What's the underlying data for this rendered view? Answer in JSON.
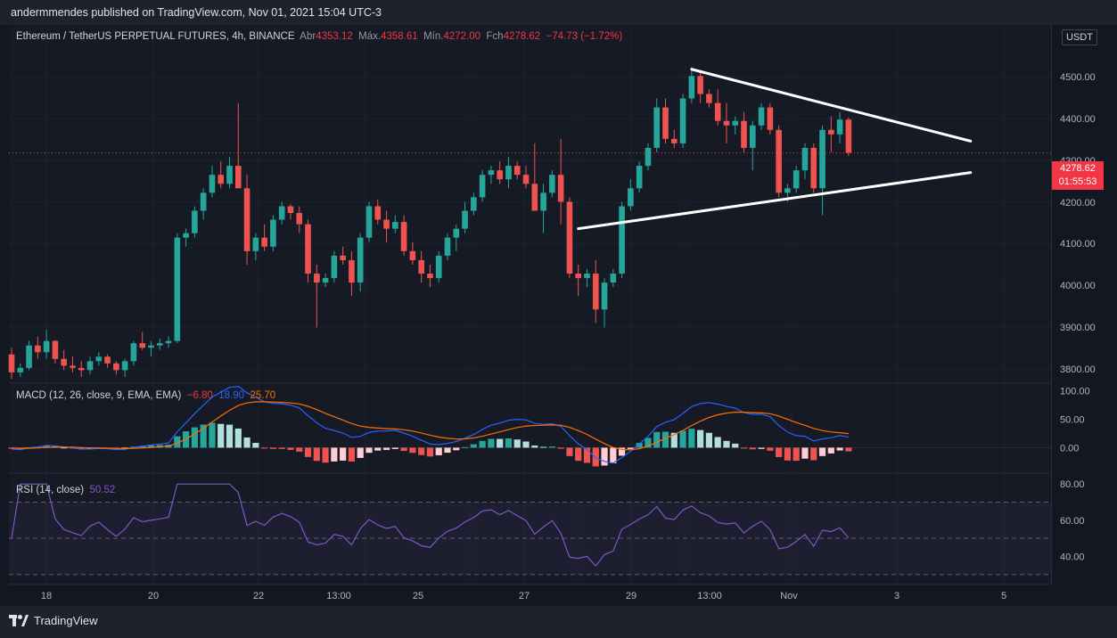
{
  "publish_line": "andermmendes published on TradingView.com, Nov 01, 2021 15:04 UTC-3",
  "legend": {
    "symbol": "Ethereum / TetherUS PERPETUAL FUTURES, 4h, BINANCE",
    "open_label": "Abr",
    "open": "4353.12",
    "high_label": "Máx.",
    "high": "4358.61",
    "low_label": "Mín.",
    "low": "4272.00",
    "close_label": "Fch",
    "close": "4278.62",
    "change": "−74.73 (−1.72%)"
  },
  "currency_button": "USDT",
  "current_price": {
    "price": "4278.62",
    "countdown": "01:55:53"
  },
  "macd_legend": {
    "title": "MACD (12, 26, close, 9, EMA, EMA)",
    "hist": "−6.80",
    "macd": "18.90",
    "signal": "25.70"
  },
  "rsi_legend": {
    "title": "RSI (14, close)",
    "value": "50.52"
  },
  "price_axis": [
    "4500.00",
    "4400.00",
    "4300.00",
    "4200.00",
    "4100.00",
    "4000.00",
    "3900.00",
    "3800.00"
  ],
  "macd_axis": [
    "100.00",
    "50.00",
    "0.00"
  ],
  "rsi_axis": [
    "80.00",
    "60.00",
    "40.00"
  ],
  "time_axis": [
    "18",
    "20",
    "22",
    "13:00",
    "25",
    "27",
    "29",
    "13:00",
    "Nov",
    "3",
    "5"
  ],
  "brand": "TradingView",
  "colors": {
    "up": "#26a69a",
    "down": "#ef5350",
    "macd": "#2962ff",
    "signal": "#ff6d00",
    "rsi": "#7e57c2",
    "trendline": "#ffffff"
  },
  "chart_data": {
    "type": "candlestick",
    "symbol": "ETHUSDT Perp",
    "interval": "4h",
    "candles_ohlc": [
      [
        3830,
        3845,
        3775,
        3790
      ],
      [
        3790,
        3810,
        3780,
        3800
      ],
      [
        3800,
        3860,
        3795,
        3850
      ],
      [
        3850,
        3870,
        3820,
        3835
      ],
      [
        3835,
        3885,
        3820,
        3860
      ],
      [
        3860,
        3862,
        3810,
        3820
      ],
      [
        3820,
        3840,
        3795,
        3805
      ],
      [
        3805,
        3825,
        3790,
        3800
      ],
      [
        3800,
        3815,
        3780,
        3795
      ],
      [
        3795,
        3825,
        3785,
        3815
      ],
      [
        3815,
        3835,
        3805,
        3825
      ],
      [
        3825,
        3830,
        3800,
        3810
      ],
      [
        3810,
        3815,
        3785,
        3795
      ],
      [
        3795,
        3820,
        3780,
        3815
      ],
      [
        3815,
        3860,
        3805,
        3855
      ],
      [
        3855,
        3880,
        3840,
        3845
      ],
      [
        3845,
        3860,
        3825,
        3850
      ],
      [
        3850,
        3865,
        3840,
        3855
      ],
      [
        3855,
        3870,
        3845,
        3860
      ],
      [
        3860,
        4100,
        3855,
        4090
      ],
      [
        4090,
        4110,
        4070,
        4100
      ],
      [
        4100,
        4160,
        4090,
        4150
      ],
      [
        4150,
        4200,
        4130,
        4190
      ],
      [
        4190,
        4250,
        4180,
        4230
      ],
      [
        4230,
        4260,
        4200,
        4210
      ],
      [
        4210,
        4270,
        4200,
        4250
      ],
      [
        4250,
        4390,
        4240,
        4200
      ],
      [
        4200,
        4230,
        4030,
        4060
      ],
      [
        4060,
        4100,
        4040,
        4090
      ],
      [
        4090,
        4120,
        4060,
        4070
      ],
      [
        4070,
        4140,
        4060,
        4130
      ],
      [
        4130,
        4170,
        4120,
        4160
      ],
      [
        4160,
        4165,
        4130,
        4145
      ],
      [
        4145,
        4160,
        4100,
        4120
      ],
      [
        4120,
        4130,
        3990,
        4010
      ],
      [
        4010,
        4030,
        3890,
        3990
      ],
      [
        3990,
        4010,
        3980,
        4000
      ],
      [
        4000,
        4060,
        3990,
        4050
      ],
      [
        4050,
        4070,
        4030,
        4040
      ],
      [
        4040,
        4060,
        3960,
        3990
      ],
      [
        3990,
        4100,
        3970,
        4090
      ],
      [
        4090,
        4170,
        4080,
        4160
      ],
      [
        4160,
        4175,
        4120,
        4130
      ],
      [
        4130,
        4150,
        4080,
        4110
      ],
      [
        4110,
        4140,
        4100,
        4125
      ],
      [
        4125,
        4140,
        4050,
        4060
      ],
      [
        4060,
        4080,
        4030,
        4040
      ],
      [
        4040,
        4060,
        3990,
        4010
      ],
      [
        4010,
        4030,
        3980,
        4000
      ],
      [
        4000,
        4060,
        3990,
        4050
      ],
      [
        4050,
        4100,
        4040,
        4090
      ],
      [
        4090,
        4120,
        4060,
        4110
      ],
      [
        4110,
        4170,
        4100,
        4150
      ],
      [
        4150,
        4190,
        4140,
        4180
      ],
      [
        4180,
        4240,
        4170,
        4230
      ],
      [
        4230,
        4250,
        4210,
        4240
      ],
      [
        4240,
        4260,
        4210,
        4220
      ],
      [
        4220,
        4270,
        4200,
        4250
      ],
      [
        4250,
        4260,
        4220,
        4230
      ],
      [
        4230,
        4250,
        4200,
        4210
      ],
      [
        4210,
        4300,
        4190,
        4150
      ],
      [
        4150,
        4210,
        4100,
        4190
      ],
      [
        4190,
        4240,
        4180,
        4230
      ],
      [
        4230,
        4310,
        4120,
        4170
      ],
      [
        4170,
        4180,
        4000,
        4010
      ],
      [
        4010,
        4030,
        3960,
        4000
      ],
      [
        4000,
        4020,
        3980,
        4010
      ],
      [
        4010,
        4040,
        3900,
        3930
      ],
      [
        3930,
        4000,
        3890,
        3990
      ],
      [
        3990,
        4020,
        3980,
        4010
      ],
      [
        4010,
        4170,
        4000,
        4160
      ],
      [
        4160,
        4220,
        4150,
        4200
      ],
      [
        4200,
        4260,
        4190,
        4250
      ],
      [
        4250,
        4300,
        4240,
        4290
      ],
      [
        4290,
        4400,
        4280,
        4380
      ],
      [
        4380,
        4400,
        4300,
        4310
      ],
      [
        4310,
        4330,
        4290,
        4300
      ],
      [
        4300,
        4410,
        4290,
        4400
      ],
      [
        4400,
        4470,
        4390,
        4450
      ],
      [
        4450,
        4460,
        4390,
        4410
      ],
      [
        4410,
        4420,
        4380,
        4390
      ],
      [
        4390,
        4420,
        4340,
        4350
      ],
      [
        4350,
        4390,
        4300,
        4340
      ],
      [
        4340,
        4360,
        4320,
        4350
      ],
      [
        4350,
        4370,
        4280,
        4290
      ],
      [
        4290,
        4350,
        4240,
        4340
      ],
      [
        4340,
        4390,
        4330,
        4380
      ],
      [
        4380,
        4390,
        4320,
        4330
      ],
      [
        4330,
        4340,
        4180,
        4190
      ],
      [
        4190,
        4210,
        4170,
        4200
      ],
      [
        4200,
        4250,
        4190,
        4240
      ],
      [
        4240,
        4300,
        4220,
        4290
      ],
      [
        4290,
        4300,
        4190,
        4200
      ],
      [
        4200,
        4340,
        4140,
        4330
      ],
      [
        4330,
        4360,
        4280,
        4320
      ],
      [
        4320,
        4370,
        4300,
        4353
      ],
      [
        4353,
        4358,
        4272,
        4279
      ]
    ],
    "trendlines": [
      {
        "name": "upper",
        "points": [
          [
            78,
            4465
          ],
          [
            110,
            4305
          ]
        ]
      },
      {
        "name": "lower",
        "points": [
          [
            65,
            4110
          ],
          [
            110,
            4235
          ]
        ]
      }
    ],
    "price_range": [
      3770,
      4530
    ],
    "macd_range": [
      -40,
      110
    ],
    "rsi_range": [
      25,
      85
    ],
    "rsi_levels": [
      70,
      50,
      30
    ],
    "last_price": 4278.62
  }
}
